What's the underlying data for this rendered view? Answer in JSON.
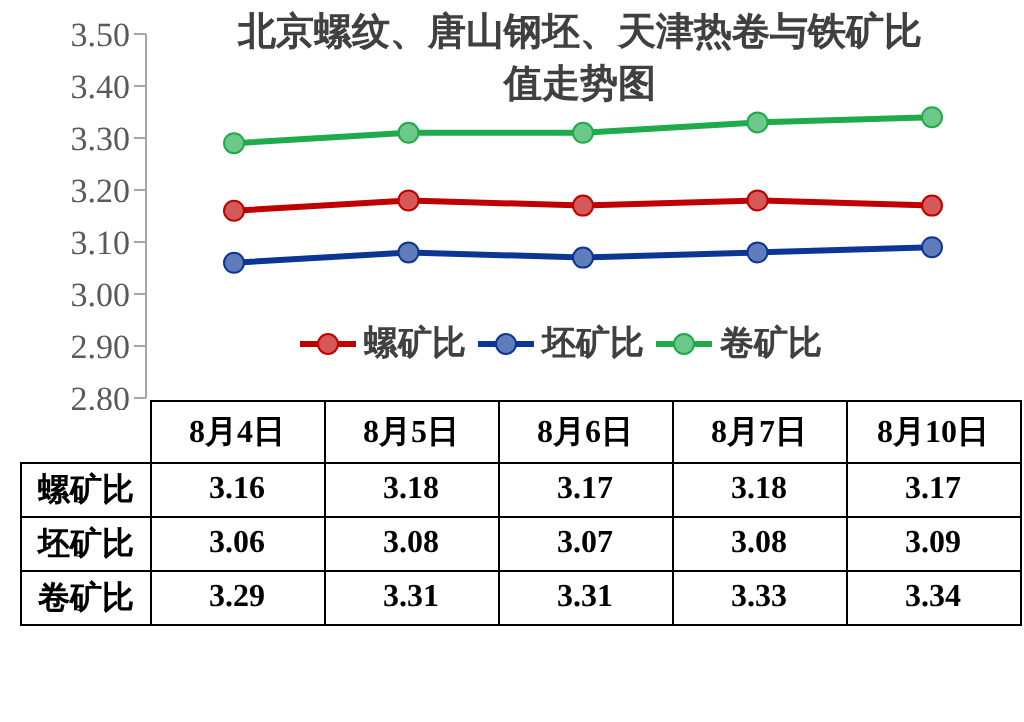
{
  "chart_data": {
    "type": "line",
    "title": "北京螺纹、唐山钢坯、天津热卷与铁矿比值走势图",
    "categories": [
      "8月4日",
      "8月5日",
      "8月6日",
      "8月7日",
      "8月10日"
    ],
    "series": [
      {
        "name": "螺矿比",
        "color": "#c00000",
        "values": [
          3.16,
          3.18,
          3.17,
          3.18,
          3.17
        ]
      },
      {
        "name": "坯矿比",
        "color": "#0c3695",
        "values": [
          3.06,
          3.08,
          3.07,
          3.08,
          3.09
        ]
      },
      {
        "name": "卷矿比",
        "color": "#1faa4b",
        "values": [
          3.29,
          3.31,
          3.31,
          3.33,
          3.34
        ]
      }
    ],
    "ylim": [
      2.8,
      3.5
    ],
    "yticks": [
      {
        "value": 2.8,
        "label": "2.80"
      },
      {
        "value": 2.9,
        "label": "2.90"
      },
      {
        "value": 3.0,
        "label": "3.00"
      },
      {
        "value": 3.1,
        "label": "3.10"
      },
      {
        "value": 3.2,
        "label": "3.20"
      },
      {
        "value": 3.3,
        "label": "3.30"
      },
      {
        "value": 3.4,
        "label": "3.40"
      },
      {
        "value": 3.5,
        "label": "3.50"
      }
    ],
    "grid": false,
    "legend": "bottom",
    "marker": "circle",
    "line_style": "solid",
    "data_labels": true
  }
}
